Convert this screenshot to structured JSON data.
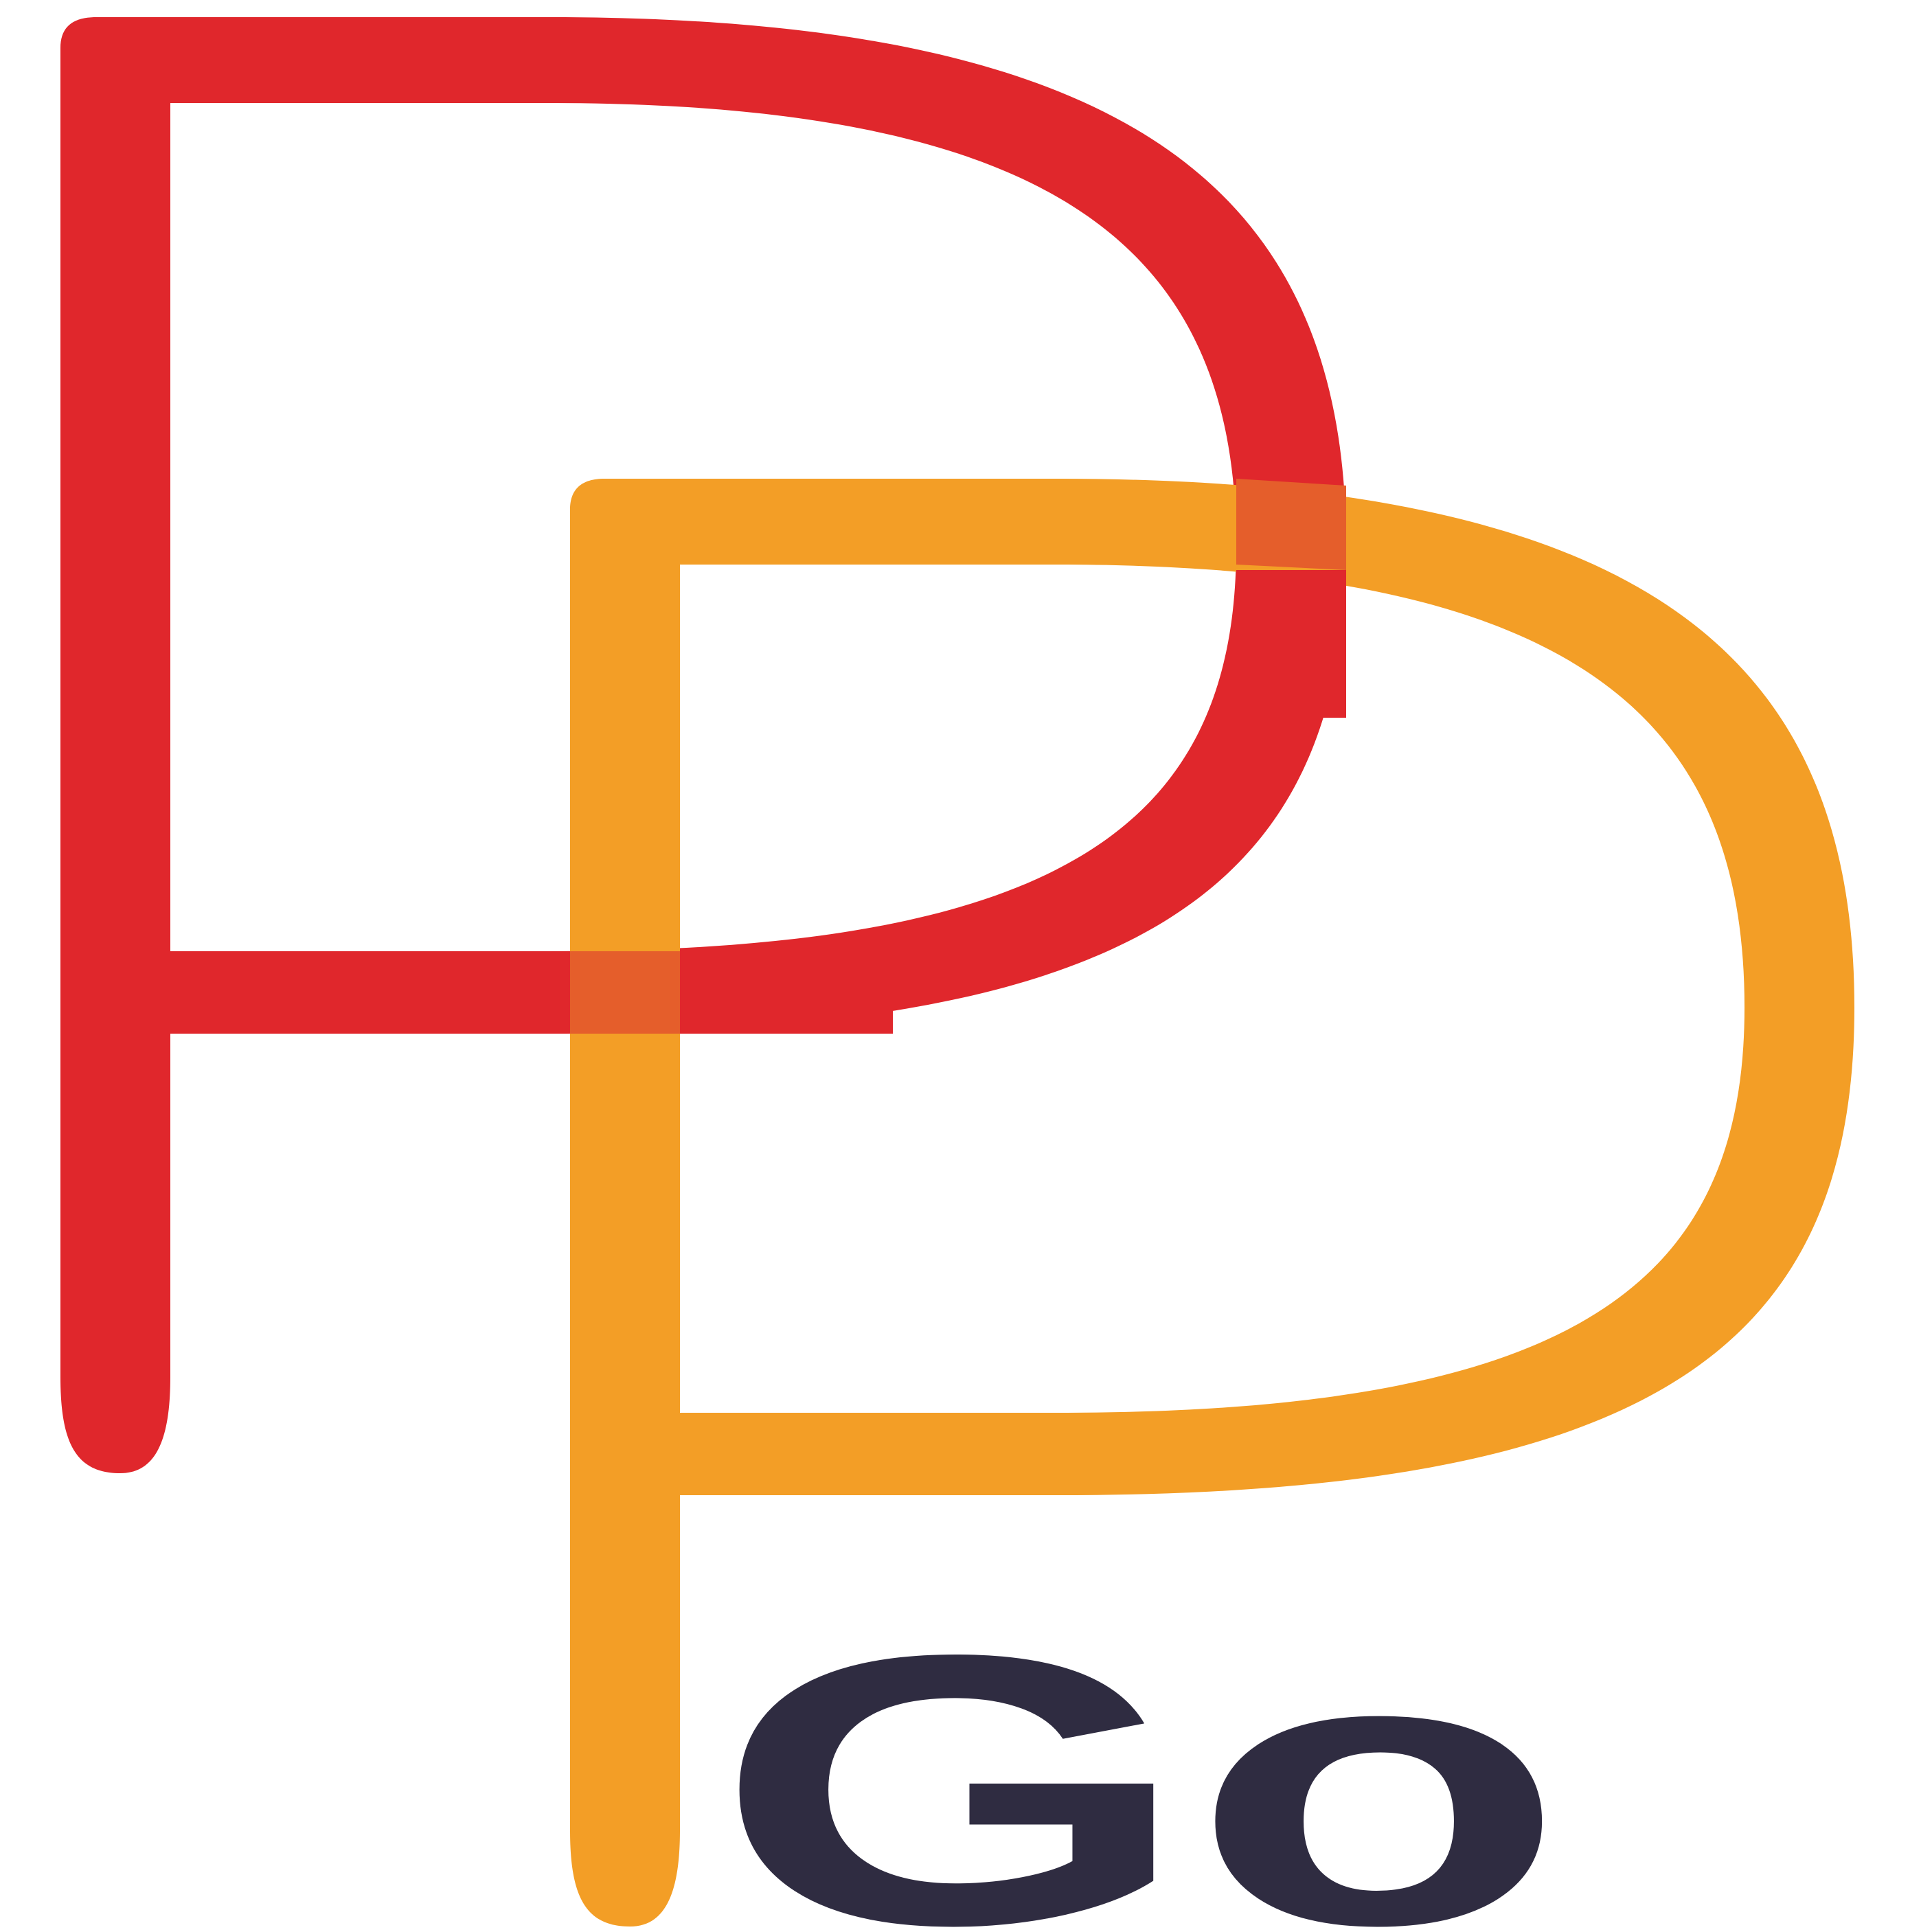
{
  "logo": {
    "wordmark": "Go",
    "colors": {
      "red_p": "#E0272C",
      "orange_p": "#F39E26",
      "overlap": "#E55E2B",
      "wordmark": "#2F2C41",
      "background": "#FFFFFF"
    }
  }
}
